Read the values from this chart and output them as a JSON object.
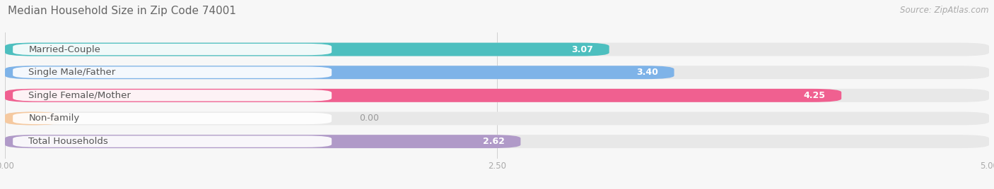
{
  "title": "Median Household Size in Zip Code 74001",
  "source": "Source: ZipAtlas.com",
  "categories": [
    "Married-Couple",
    "Single Male/Father",
    "Single Female/Mother",
    "Non-family",
    "Total Households"
  ],
  "values": [
    3.07,
    3.4,
    4.25,
    0.0,
    2.62
  ],
  "bar_colors": [
    "#4DBFBF",
    "#7EB3E8",
    "#F06090",
    "#F5C9A0",
    "#B09AC8"
  ],
  "xlim": [
    0,
    5.0
  ],
  "xticks": [
    0.0,
    2.5,
    5.0
  ],
  "background_color": "#f7f7f7",
  "bar_bg_color": "#e8e8e8",
  "title_fontsize": 11,
  "label_fontsize": 9.5,
  "value_fontsize": 9,
  "source_fontsize": 8.5,
  "bar_height": 0.58,
  "bar_gap": 0.42
}
